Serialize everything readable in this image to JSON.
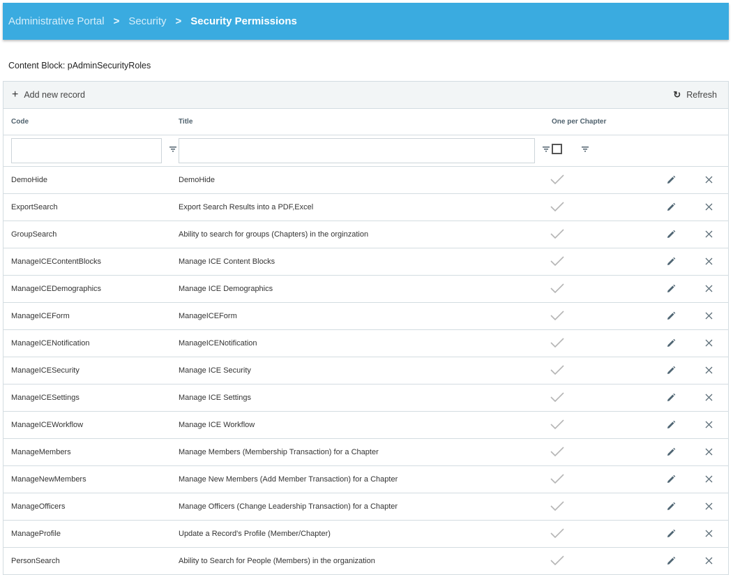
{
  "breadcrumb": {
    "items": [
      "Administrative Portal",
      "Security",
      "Security Permissions"
    ]
  },
  "content_block_label": "Content Block: pAdminSecurityRoles",
  "toolbar": {
    "add_label": "Add new record",
    "refresh_label": "Refresh"
  },
  "columns": {
    "code": "Code",
    "title": "Title",
    "one_per_chapter": "One per Chapter"
  },
  "filters": {
    "code": "",
    "title": "",
    "one_per_chapter_checked": false
  },
  "colors": {
    "header": "#3aabe0",
    "toolbar": "#f2f5f6"
  },
  "rows": [
    {
      "code": "DemoHide",
      "title": "DemoHide",
      "one_per_chapter": true
    },
    {
      "code": "ExportSearch",
      "title": "Export Search Results into a PDF,Excel",
      "one_per_chapter": true
    },
    {
      "code": "GroupSearch",
      "title": "Ability to search for groups (Chapters) in the orginzation",
      "one_per_chapter": true
    },
    {
      "code": "ManageICEContentBlocks",
      "title": "Manage ICE Content Blocks",
      "one_per_chapter": true
    },
    {
      "code": "ManageICEDemographics",
      "title": "Manage ICE Demographics",
      "one_per_chapter": true
    },
    {
      "code": "ManageICEForm",
      "title": "ManageICEForm",
      "one_per_chapter": true
    },
    {
      "code": "ManageICENotification",
      "title": "ManageICENotification",
      "one_per_chapter": true
    },
    {
      "code": "ManageICESecurity",
      "title": "Manage ICE Security",
      "one_per_chapter": true
    },
    {
      "code": "ManageICESettings",
      "title": "Manage ICE Settings",
      "one_per_chapter": true
    },
    {
      "code": "ManageICEWorkflow",
      "title": "Manage ICE Workflow",
      "one_per_chapter": true
    },
    {
      "code": "ManageMembers",
      "title": "Manage Members (Membership Transaction) for a Chapter",
      "one_per_chapter": true
    },
    {
      "code": "ManageNewMembers",
      "title": "Manage New Members (Add Member Transaction) for a Chapter",
      "one_per_chapter": true
    },
    {
      "code": "ManageOfficers",
      "title": "Manage Officers (Change Leadership Transaction) for a Chapter",
      "one_per_chapter": true
    },
    {
      "code": "ManageProfile",
      "title": "Update a Record's Profile (Member/Chapter)",
      "one_per_chapter": true
    },
    {
      "code": "PersonSearch",
      "title": "Ability to Search for People (Members) in the organization",
      "one_per_chapter": true
    }
  ]
}
